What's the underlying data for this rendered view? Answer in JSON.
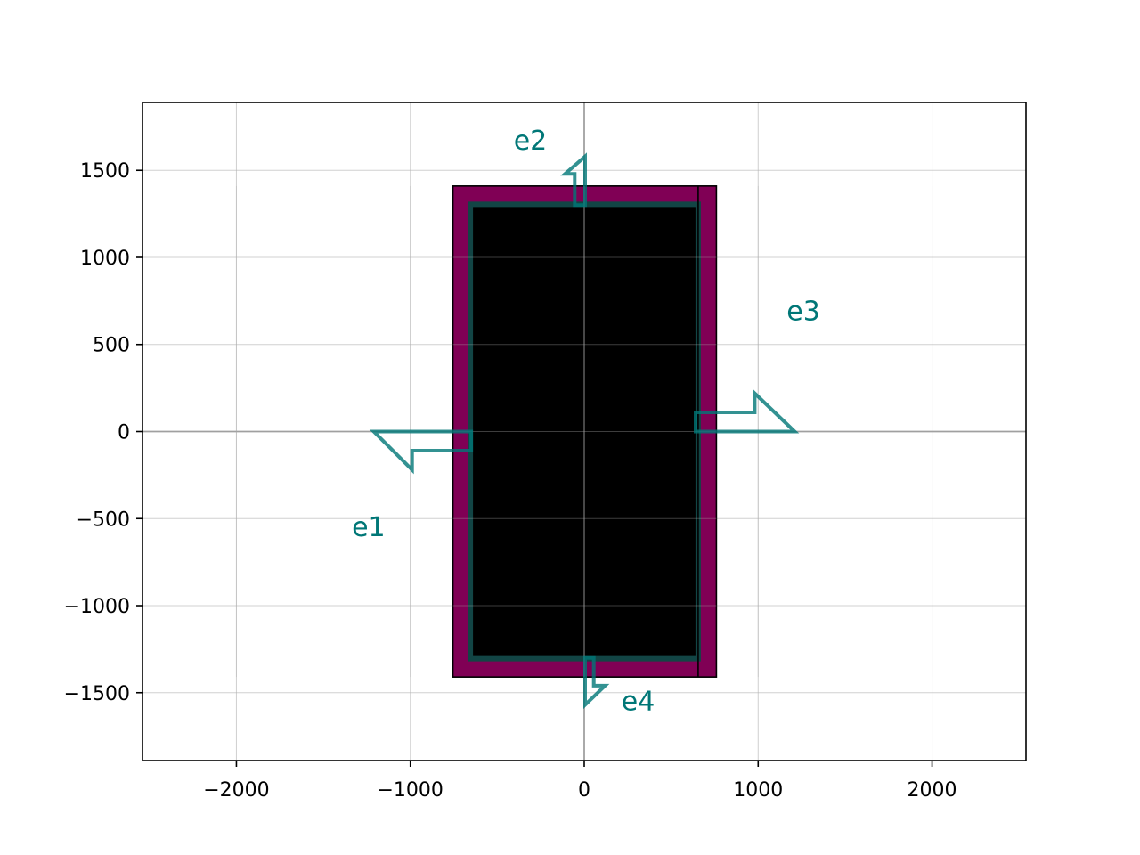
{
  "chart_data": {
    "type": "diagram",
    "title": "",
    "xlabel": "",
    "ylabel": "",
    "xlim": [
      -2540,
      2540
    ],
    "ylim": [
      -1890,
      1890
    ],
    "grid": true,
    "xticks": [
      {
        "value": -2000,
        "label": "−2000"
      },
      {
        "value": -1000,
        "label": "−1000"
      },
      {
        "value": 0,
        "label": "0"
      },
      {
        "value": 1000,
        "label": "1000"
      },
      {
        "value": 2000,
        "label": "2000"
      }
    ],
    "yticks": [
      {
        "value": -1500,
        "label": "−1500"
      },
      {
        "value": -1000,
        "label": "−1000"
      },
      {
        "value": -500,
        "label": "−500"
      },
      {
        "value": 0,
        "label": "0"
      },
      {
        "value": 500,
        "label": "500"
      },
      {
        "value": 1000,
        "label": "1000"
      },
      {
        "value": 1500,
        "label": "1500"
      }
    ],
    "outer_rect": {
      "x0": -755,
      "x1": 760,
      "y0": -1410,
      "y1": 1410,
      "color": "#800055"
    },
    "inner_rect": {
      "x0": -655,
      "x1": 655,
      "y0": -1305,
      "y1": 1305,
      "color": "#000000",
      "edge": "#124545"
    },
    "divider_x": 655,
    "ports": [
      {
        "name": "e1",
        "text": "e1",
        "polygon": [
          [
            -650,
            0
          ],
          [
            -1210,
            0
          ],
          [
            -990,
            -220
          ],
          [
            -990,
            -110
          ],
          [
            -650,
            -110
          ]
        ],
        "label_at": [
          -1240,
          -600
        ]
      },
      {
        "name": "e2",
        "text": "e2",
        "polygon": [
          [
            -55,
            1300
          ],
          [
            -55,
            1480
          ],
          [
            -110,
            1480
          ],
          [
            5,
            1580
          ],
          [
            5,
            1300
          ]
        ],
        "label_at": [
          -310,
          1620
        ]
      },
      {
        "name": "e3",
        "text": "e3",
        "polygon": [
          [
            640,
            110
          ],
          [
            980,
            110
          ],
          [
            980,
            220
          ],
          [
            1210,
            0
          ],
          [
            640,
            0
          ]
        ],
        "label_at": [
          1260,
          640
        ]
      },
      {
        "name": "e4",
        "text": "e4",
        "polygon": [
          [
            55,
            -1300
          ],
          [
            55,
            -1460
          ],
          [
            120,
            -1460
          ],
          [
            5,
            -1570
          ],
          [
            5,
            -1300
          ]
        ],
        "label_at": [
          310,
          -1600
        ]
      }
    ],
    "port_color": "#007777"
  }
}
